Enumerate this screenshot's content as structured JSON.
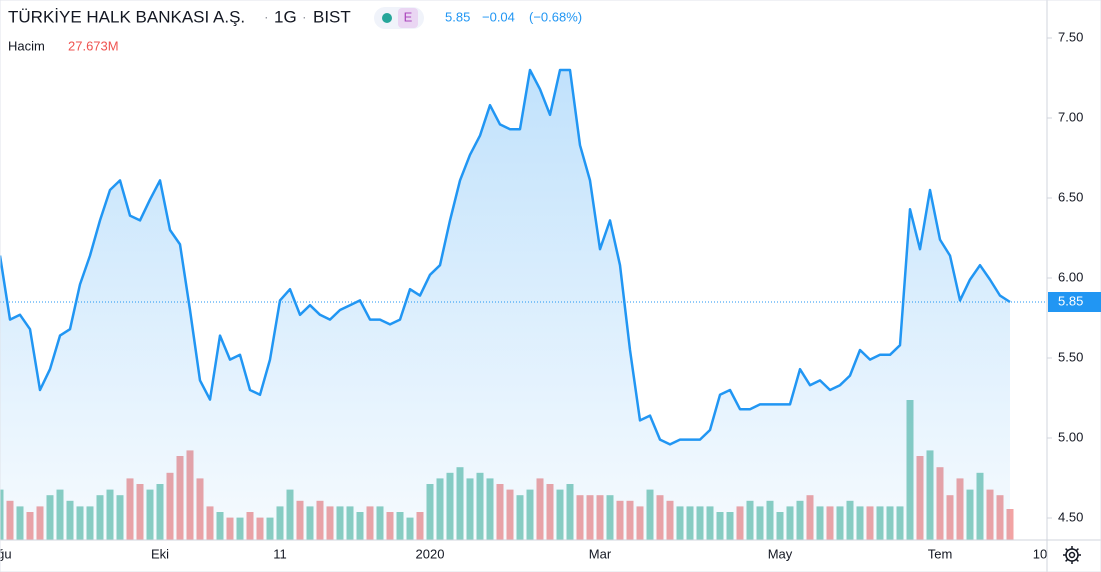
{
  "chart_data": {
    "type": "line",
    "title": "TÜRKİYE HALK BANKASI A.Ş.",
    "interval": "1G",
    "exchange": "BIST",
    "badge": "E",
    "change": "−0.04",
    "change_pct": "(−0.68%)",
    "categories": [
      "Ağu",
      null,
      null,
      null,
      null,
      null,
      null,
      null,
      null,
      null,
      null,
      null,
      null,
      null,
      null,
      null,
      "Eki",
      null,
      null,
      null,
      null,
      null,
      null,
      null,
      null,
      null,
      null,
      null,
      "11",
      null,
      null,
      null,
      null,
      null,
      null,
      null,
      null,
      null,
      null,
      null,
      null,
      null,
      null,
      "2020",
      null,
      null,
      null,
      null,
      null,
      null,
      null,
      null,
      null,
      null,
      null,
      null,
      null,
      null,
      null,
      null,
      "Mar",
      null,
      null,
      null,
      null,
      null,
      null,
      null,
      null,
      null,
      null,
      null,
      null,
      null,
      null,
      null,
      null,
      null,
      "May",
      null,
      null,
      null,
      null,
      null,
      null,
      null,
      null,
      null,
      null,
      null,
      null,
      null,
      null,
      null,
      "Tem",
      null,
      null,
      null,
      null,
      null,
      null,
      null,
      null,
      null,
      "10"
    ],
    "series": [
      {
        "color": "#2196f3",
        "last_value_label": "5.85",
        "values": [
          6.14,
          5.74,
          5.77,
          5.68,
          5.3,
          5.43,
          5.64,
          5.68,
          5.96,
          6.14,
          6.36,
          6.55,
          6.61,
          6.39,
          6.36,
          6.49,
          6.61,
          6.3,
          6.21,
          5.8,
          5.36,
          5.24,
          5.64,
          5.49,
          5.52,
          5.3,
          5.27,
          5.49,
          5.86,
          5.93,
          5.77,
          5.83,
          5.77,
          5.74,
          5.8,
          5.83,
          5.86,
          5.74,
          5.74,
          5.71,
          5.74,
          5.93,
          5.89,
          6.02,
          6.08,
          6.36,
          6.61,
          6.77,
          6.89,
          7.08,
          6.96,
          6.93,
          6.93,
          7.3,
          7.18,
          7.02,
          7.3,
          7.3,
          6.83,
          6.61,
          6.18,
          6.36,
          6.08,
          5.55,
          5.11,
          5.14,
          4.99,
          4.96,
          4.99,
          4.99,
          4.99,
          5.05,
          5.27,
          5.3,
          5.18,
          5.18,
          5.21,
          5.21,
          5.21,
          5.21,
          5.43,
          5.33,
          5.36,
          5.3,
          5.33,
          5.39,
          5.55,
          5.49,
          5.52,
          5.52,
          5.58,
          6.43,
          6.18,
          6.55,
          6.24,
          6.14,
          5.86,
          5.99,
          6.08,
          5.99,
          5.89,
          5.85,
          null,
          null,
          null
        ]
      },
      {
        "name": "Hacim",
        "up_color": "#8ccfc0",
        "down_color": "#f2a3a3",
        "label_color": "#ef5350",
        "last_value_label": "27.673M",
        "values": [
          45,
          35,
          30,
          25,
          30,
          40,
          45,
          35,
          30,
          30,
          40,
          45,
          40,
          55,
          50,
          45,
          50,
          60,
          75,
          80,
          55,
          30,
          25,
          20,
          20,
          25,
          20,
          20,
          30,
          45,
          35,
          30,
          35,
          30,
          30,
          30,
          25,
          30,
          30,
          25,
          25,
          20,
          25,
          50,
          55,
          60,
          65,
          55,
          60,
          55,
          50,
          45,
          40,
          45,
          55,
          50,
          45,
          50,
          40,
          40,
          40,
          40,
          35,
          35,
          30,
          45,
          40,
          35,
          30,
          30,
          30,
          30,
          25,
          25,
          30,
          35,
          30,
          35,
          25,
          30,
          35,
          40,
          30,
          30,
          30,
          35,
          30,
          30,
          30,
          30,
          30,
          125,
          75,
          80,
          65,
          40,
          55,
          45,
          60,
          45,
          40,
          27.673,
          null,
          null,
          null
        ]
      }
    ],
    "ylim": [
      4.5,
      7.5
    ],
    "yticks": [
      {
        "value": 4.5,
        "label": "4.50"
      },
      {
        "value": 5,
        "label": "5.00"
      },
      {
        "value": 5.5,
        "label": "5.50"
      },
      {
        "value": 6,
        "label": "6.00"
      },
      {
        "value": 6.5,
        "label": "6.50"
      },
      {
        "value": 7,
        "label": "7.00"
      },
      {
        "value": 7.5,
        "label": "7.50"
      }
    ],
    "grid": false
  }
}
